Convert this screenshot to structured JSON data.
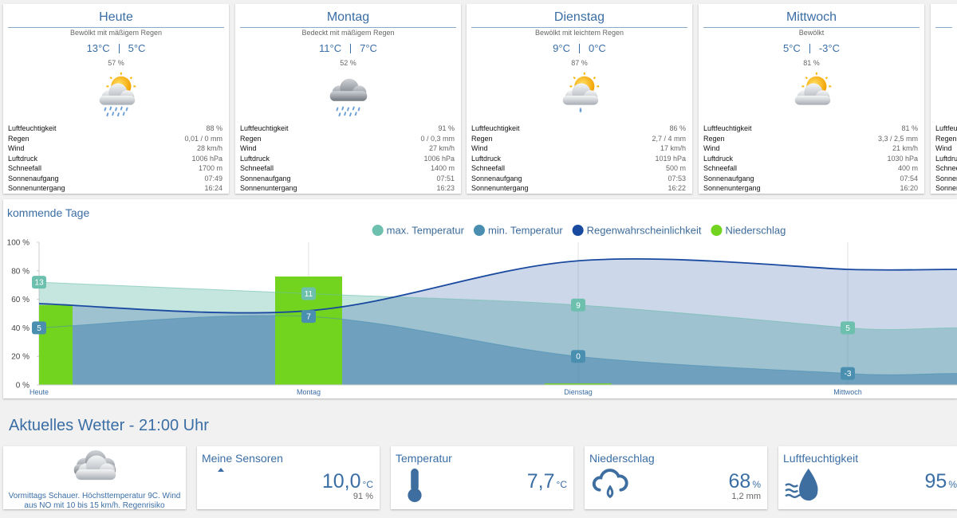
{
  "forecast": {
    "row_labels": [
      "Luftfeuchtigkeit",
      "Regen",
      "Wind",
      "Luftdruck",
      "Schneefall",
      "Sonnenaufgang",
      "Sonnenuntergang"
    ],
    "days": [
      {
        "title": "Heute",
        "condition": "Bewölkt mit mäßigem Regen",
        "temp_max": "13°C",
        "temp_min": "5°C",
        "rain_probability": "57 %",
        "rows": [
          "88 %",
          "0,01 / 0 mm",
          "28 km/h",
          "1006 hPa",
          "1700 m",
          "07:49",
          "16:24"
        ]
      },
      {
        "title": "Montag",
        "condition": "Bedeckt mit mäßigem Regen",
        "temp_max": "11°C",
        "temp_min": "7°C",
        "rain_probability": "52 %",
        "rows": [
          "91 %",
          "0 / 0,3 mm",
          "27 km/h",
          "1006 hPa",
          "1400 m",
          "07:51",
          "16:23"
        ]
      },
      {
        "title": "Dienstag",
        "condition": "Bewölkt mit leichtem Regen",
        "temp_max": "9°C",
        "temp_min": "0°C",
        "rain_probability": "87 %",
        "rows": [
          "86 %",
          "2,7 / 4 mm",
          "17 km/h",
          "1019 hPa",
          "500 m",
          "07:53",
          "16:22"
        ]
      },
      {
        "title": "Mittwoch",
        "condition": "Bewölkt",
        "temp_max": "5°C",
        "temp_min": "-3°C",
        "rain_probability": "81 %",
        "rows": [
          "81 %",
          "3,3 / 2,5 mm",
          "21 km/h",
          "1030 hPa",
          "400 m",
          "07:54",
          "16:20"
        ]
      }
    ]
  },
  "chart_data": {
    "type": "line",
    "title": "kommende Tage",
    "categories": [
      "Heute",
      "Montag",
      "Dienstag",
      "Mittwoch"
    ],
    "ylim": [
      0,
      100
    ],
    "yticks": [
      {
        "value": 0,
        "label": "0 %"
      },
      {
        "value": 20,
        "label": "20 %"
      },
      {
        "value": 40,
        "label": "40 %"
      },
      {
        "value": 60,
        "label": "60 %"
      },
      {
        "value": 80,
        "label": "80 %"
      },
      {
        "value": 100,
        "label": "100 %"
      }
    ],
    "y2lim": [
      -5,
      20
    ],
    "legend": "top",
    "series": [
      {
        "name": "max. Temperatur",
        "color": "#6dbfae",
        "type": "areaspline",
        "axis": "y2",
        "data_labels": true,
        "values": [
          13,
          11,
          9,
          5
        ]
      },
      {
        "name": "min. Temperatur",
        "color": "#4a8fb0",
        "type": "areaspline",
        "axis": "y2",
        "data_labels": true,
        "values": [
          5,
          7,
          0,
          -3
        ]
      },
      {
        "name": "Regenwahrscheinlichkeit",
        "color": "#1a4aa0",
        "type": "areaspline",
        "values": [
          57,
          52,
          87,
          81
        ]
      },
      {
        "name": "Niederschlag",
        "color": "#72d41e",
        "type": "column",
        "values": [
          56,
          76,
          1,
          null
        ]
      }
    ]
  },
  "current": {
    "title": "Aktuelles Wetter - 21:00 Uhr",
    "forecast_text": "Vormittags Schauer. Höchsttemperatur 9C. Wind aus NO mit 10 bis 15 km/h. Regenrisiko",
    "tiles": [
      {
        "title": "Meine Sensoren",
        "value": "10,0",
        "unit": "°C",
        "sub": "91 %"
      },
      {
        "title": "Temperatur",
        "value": "7,7",
        "unit": "°C"
      },
      {
        "title": "Niederschlag",
        "value": "68",
        "unit": "%",
        "sub": "1,2 mm"
      },
      {
        "title": "Luftfeuchtigkeit",
        "value": "95",
        "unit": "%"
      }
    ]
  }
}
